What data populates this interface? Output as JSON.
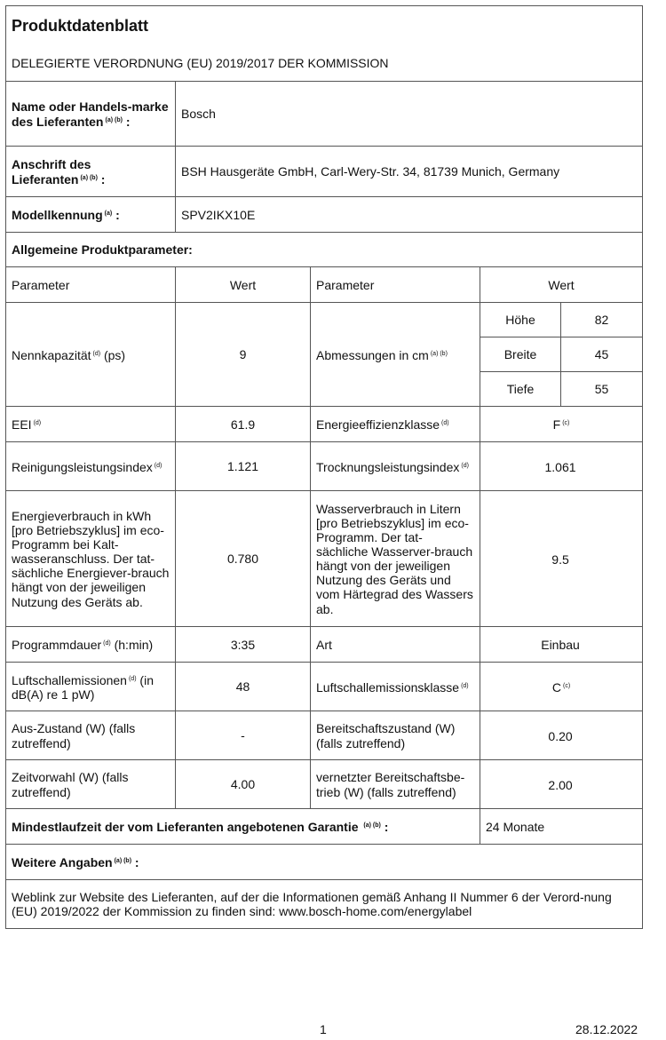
{
  "title": "Produktdatenblatt",
  "subtitle": "DELEGIERTE VERORDNUNG (EU) 2019/2017 DER KOMMISSION",
  "supplier": {
    "label": "Name oder Handels-marke des Lieferanten",
    "sup": "(a) (b)",
    "value": "Bosch"
  },
  "address": {
    "label": "Anschrift des Lieferanten",
    "sup": "(a) (b)",
    "value": "BSH Hausgeräte GmbH, Carl-Wery-Str. 34, 81739 Munich, Germany"
  },
  "model": {
    "label": "Modellkennung",
    "sup": "(a)",
    "value": "SPV2IKX10E"
  },
  "general": "Allgemeine Produktparameter:",
  "headers": {
    "param": "Parameter",
    "value": "Wert"
  },
  "capacity": {
    "label": "Nennkapazität",
    "sup": "(d)",
    "unit": "(ps)",
    "value": "9"
  },
  "dimensions": {
    "label": "Abmessungen in cm",
    "sup": "(a) (b)",
    "rows": [
      {
        "name": "Höhe",
        "value": "82"
      },
      {
        "name": "Breite",
        "value": "45"
      },
      {
        "name": "Tiefe",
        "value": "55"
      }
    ]
  },
  "rows": [
    {
      "l1": "EEI",
      "s1": "(d)",
      "v1": "61.9",
      "l2": "Energieeffizienzklasse",
      "s2": "(d)",
      "v2": "F",
      "vs2": "(c)"
    },
    {
      "l1": "Reinigungsleistungsindex",
      "s1": "(d)",
      "v1": "1.121",
      "l2": "Trocknungsleistungsindex",
      "s2": "(d)",
      "v2": "1.061",
      "vs2": ""
    },
    {
      "l1": "Energieverbrauch in kWh [pro Betriebszyklus] im eco-Programm bei Kalt-wasseranschluss. Der tat-sächliche Energiever-brauch hängt von der jeweiligen Nutzung des Geräts ab.",
      "s1": "",
      "v1": "0.780",
      "l2": "Wasserverbrauch in Litern [pro Betriebszyklus] im eco-Programm. Der tat-sächliche Wasserver-brauch hängt von der jeweiligen Nutzung des Geräts und vom Härtegrad des Wassers ab.",
      "s2": "",
      "v2": "9.5",
      "vs2": ""
    },
    {
      "l1": "Programmdauer",
      "s1": "(d)",
      "t1": "(h:min)",
      "v1": "3:35",
      "l2": "Art",
      "s2": "",
      "v2": "Einbau",
      "vs2": ""
    },
    {
      "l1": "Luftschallemissionen",
      "s1": "(d)",
      "t1": "(in dB(A) re 1 pW)",
      "v1": "48",
      "l2": "Luftschallemissionsklasse",
      "s2": "(d)",
      "v2": "C",
      "vs2": "(c)"
    },
    {
      "l1": "Aus-Zustand (W) (falls zutreffend)",
      "s1": "",
      "v1": "-",
      "l2": "Bereitschaftszustand (W) (falls zutreffend)",
      "s2": "",
      "v2": "0.20",
      "vs2": ""
    },
    {
      "l1": "Zeitvorwahl (W) (falls zutreffend)",
      "s1": "",
      "v1": "4.00",
      "l2": "vernetzter Bereitschaftsbe-trieb (W) (falls zutreffend)",
      "s2": "",
      "v2": "2.00",
      "vs2": ""
    }
  ],
  "warranty": {
    "label": "Mindestlaufzeit der vom Lieferanten angebotenen Garantie",
    "sup": "(a) (b)",
    "value": "24 Monate"
  },
  "further": {
    "label": "Weitere Angaben",
    "sup": "(a) (b)"
  },
  "weblink": "Weblink zur Website des Lieferanten, auf der die Informationen gemäß Anhang II Nummer 6 der Verord-nung (EU) 2019/2022 der Kommission zu finden sind: www.bosch-home.com/energylabel",
  "page": "1",
  "date": "28.12.2022"
}
